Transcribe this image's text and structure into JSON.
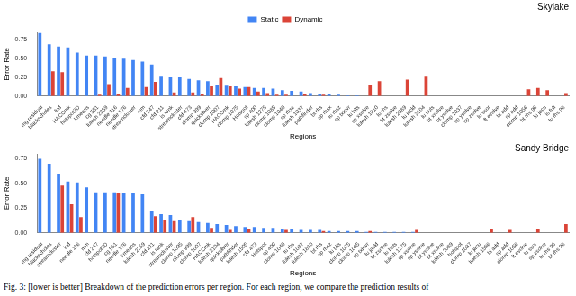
{
  "chart_data": [
    {
      "type": "bar",
      "title": "Skylake",
      "x_label": "Regions",
      "y_label": "Error Rate",
      "legend": "top",
      "grid": false,
      "categories": [
        "mg residual",
        "blackscholes",
        "lud",
        "HACCmk",
        "hotspot3D",
        "kmeans",
        "cg 551",
        "lulesh 2259",
        "needle 116",
        "needle 176",
        "streamcluster",
        "mm",
        "cfd 247",
        "cfd 211",
        "is rank",
        "streamcluster",
        "cfd 473",
        "clomp 999",
        "quicksilver",
        "clomp 1007",
        "HACCmk",
        "clomp 1075",
        "Hotspot",
        "sp 400",
        "lulesh 1275",
        "clomp 1085",
        "clomp 1040",
        "sp rhsz",
        "lulesh 1037",
        "pathfinder",
        "bt rhs",
        "sp rhsx",
        "lu rhsz",
        "sp txinvr",
        "lu blts",
        "sp xsolve",
        "lulesh 1810",
        "lu rhs",
        "bt zsolve",
        "lulesh 2089",
        "lu jacld",
        "lulesh 2104",
        "lu buts",
        "bt xsolve",
        "bt ysolve",
        "clomp 1037",
        "sp ysolve",
        "sp zsolve",
        "lu ssor",
        "ft evolve",
        "bt add",
        "sp add",
        "clomp 1056",
        "bt rhs 96",
        "lu jacu",
        "is full",
        "lu rhs 96"
      ],
      "series": [
        {
          "name": "Static",
          "color": "#4285f4",
          "values": [
            0.84,
            0.69,
            0.66,
            0.65,
            0.58,
            0.54,
            0.54,
            0.53,
            0.51,
            0.5,
            0.48,
            0.46,
            0.42,
            0.26,
            0.25,
            0.25,
            0.23,
            0.21,
            0.2,
            0.15,
            0.14,
            0.13,
            0.12,
            0.11,
            0.11,
            0.1,
            0.08,
            0.07,
            0.06,
            0.04,
            0.03,
            0.03,
            0.02,
            0.01,
            0.01,
            0,
            0,
            0,
            0,
            0,
            0,
            0,
            0,
            0,
            0,
            0,
            0,
            0,
            0,
            0,
            0,
            0,
            0,
            0,
            0,
            0,
            0
          ]
        },
        {
          "name": "Dynamic",
          "color": "#db4437",
          "values": [
            0,
            0.33,
            0.32,
            0,
            0,
            0,
            0.02,
            0.16,
            0.03,
            0.11,
            0,
            0.12,
            0.19,
            0,
            0.05,
            0,
            0.05,
            0.03,
            0.13,
            0.24,
            0.13,
            0.1,
            0.12,
            0.06,
            0.04,
            0.02,
            0.02,
            0,
            0.03,
            0,
            0.02,
            0,
            0,
            0,
            0,
            0.15,
            0.2,
            0,
            0,
            0.22,
            0,
            0.26,
            0,
            0,
            0,
            0,
            0,
            0,
            0,
            0,
            0,
            0,
            0.09,
            0.11,
            0.08,
            0,
            0.04
          ]
        }
      ],
      "ylim": [
        0,
        0.85
      ],
      "yticks": [
        {
          "value": 0,
          "label": "0.00"
        },
        {
          "value": 0.25,
          "label": "0.25"
        },
        {
          "value": 0.5,
          "label": "0.50"
        },
        {
          "value": 0.75,
          "label": "0.75"
        }
      ]
    },
    {
      "type": "bar",
      "title": "Sandy Bridge",
      "x_label": "Regions",
      "y_label": "Error Rate",
      "grid": false,
      "categories": [
        "mg residual",
        "blackscholes",
        "streamcluster",
        "lud",
        "needle 116",
        "mm",
        "cfd 247",
        "hotspot3D",
        "cg 551",
        "needle 176",
        "kmeans",
        "lulesh 2259",
        "cfd 211",
        "is rank",
        "streamcluster",
        "clomp 1095",
        "clomp 999",
        "clomp 1007",
        "HACCmk",
        "lulesh 2104",
        "quicksilver",
        "pathfinder",
        "lulesh 1505",
        "cfd 473",
        "Hotspot",
        "sp 400",
        "clomp 1040",
        "lu rhs",
        "lulesh 1037",
        "lulesh 1810",
        "bt rhs",
        "sp rhsz",
        "lu blts",
        "clomp 1075",
        "clomp 1085",
        "sp txinvr",
        "lu jacld",
        "bt zsolve",
        "lu buts",
        "lulesh 1275",
        "sp xsolve",
        "sp ysolve",
        "bt ysolve",
        "bt xsolve",
        "lulesh 2089",
        "hotspot",
        "clomp 1037",
        "lu jacu",
        "lulesh 1586",
        "bt add",
        "sp add",
        "clomp 1056",
        "ft evolve",
        "lu ssor",
        "sp zsolve",
        "lu rhs 96",
        "bt rhs 96"
      ],
      "series": [
        {
          "name": "Static",
          "color": "#4285f4",
          "values": [
            0.75,
            0.7,
            0.6,
            0.52,
            0.51,
            0.46,
            0.41,
            0.41,
            0.41,
            0.4,
            0.4,
            0.39,
            0.22,
            0.19,
            0.18,
            0.13,
            0.12,
            0.11,
            0.1,
            0.09,
            0.08,
            0.07,
            0.06,
            0.06,
            0.05,
            0.05,
            0.04,
            0.04,
            0.03,
            0.03,
            0.03,
            0.02,
            0.02,
            0.02,
            0.02,
            0.01,
            0.01,
            0.01,
            0.01,
            0.01,
            0.01,
            0,
            0,
            0,
            0,
            0,
            0,
            0,
            0,
            0,
            0,
            0,
            0,
            0,
            0,
            0,
            0
          ]
        },
        {
          "name": "Dynamic",
          "color": "#db4437",
          "values": [
            0,
            0,
            0.48,
            0.29,
            0.16,
            0,
            0,
            0,
            0.4,
            0,
            0,
            0,
            0.17,
            0.13,
            0.12,
            0,
            0.16,
            0,
            0.05,
            0,
            0.03,
            0,
            0.04,
            0,
            0,
            0,
            0.03,
            0,
            0,
            0,
            0.02,
            0,
            0,
            0,
            0,
            0.02,
            0,
            0,
            0,
            0,
            0.03,
            0,
            0,
            0,
            0,
            0,
            0,
            0,
            0.04,
            0,
            0.03,
            0,
            0,
            0.04,
            0,
            0,
            0.09
          ]
        }
      ],
      "ylim": [
        0,
        0.8
      ],
      "yticks": [
        {
          "value": 0,
          "label": "0.00"
        },
        {
          "value": 0.25,
          "label": "0.25"
        },
        {
          "value": 0.5,
          "label": "0.50"
        },
        {
          "value": 0.75,
          "label": "0.75"
        }
      ]
    }
  ],
  "caption": "Fig. 3: [lower is better] Breakdown of the prediction errors per region. For each region, we compare the prediction results of"
}
